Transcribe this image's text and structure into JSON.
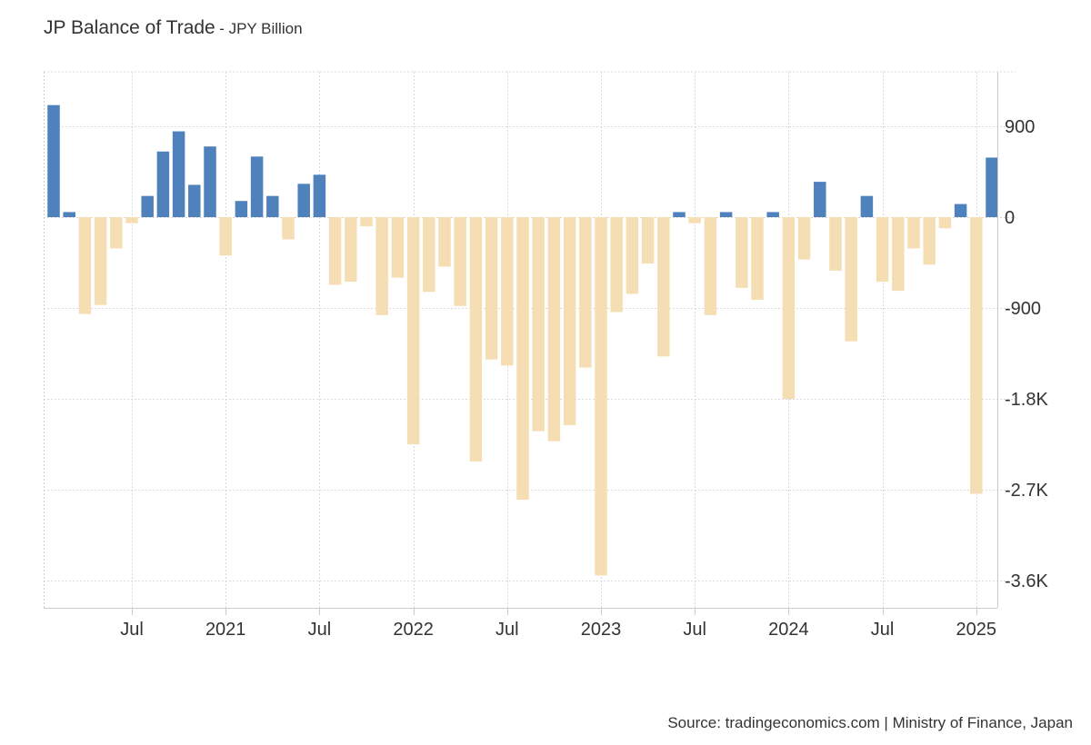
{
  "header": {
    "title": "JP Balance of Trade",
    "subtitle": "- JPY Billion"
  },
  "footer": {
    "source": "Source: tradingeconomics.com | Ministry of Finance, Japan"
  },
  "colors": {
    "positive": "#4f81bd",
    "negative": "#f5deb3",
    "grid": "#d9d9d9",
    "axis": "#cccccc",
    "text": "#333333"
  },
  "chart_data": {
    "type": "bar",
    "title": "JP Balance of Trade",
    "ylabel": "JPY Billion",
    "xlabel": "",
    "ylim": [
      -3870,
      1440
    ],
    "yticks": [
      {
        "value": 900,
        "label": "900"
      },
      {
        "value": 0,
        "label": "0"
      },
      {
        "value": -900,
        "label": "-900"
      },
      {
        "value": -1800,
        "label": "-1.8K"
      },
      {
        "value": -2700,
        "label": "-2.7K"
      },
      {
        "value": -3600,
        "label": "-3.6K"
      }
    ],
    "xticks": [
      {
        "index": 5,
        "label": "Jul"
      },
      {
        "index": 11,
        "label": "2021"
      },
      {
        "index": 17,
        "label": "Jul"
      },
      {
        "index": 23,
        "label": "2022"
      },
      {
        "index": 29,
        "label": "Jul"
      },
      {
        "index": 35,
        "label": "2023"
      },
      {
        "index": 41,
        "label": "Jul"
      },
      {
        "index": 47,
        "label": "2024"
      },
      {
        "index": 53,
        "label": "Jul"
      },
      {
        "index": 59,
        "label": "2025"
      }
    ],
    "categories": [
      "2020-02",
      "2020-03",
      "2020-04",
      "2020-05",
      "2020-06",
      "2020-07",
      "2020-08",
      "2020-09",
      "2020-10",
      "2020-11",
      "2020-12",
      "2021-01",
      "2021-02",
      "2021-03",
      "2021-04",
      "2021-05",
      "2021-06",
      "2021-07",
      "2021-08",
      "2021-09",
      "2021-10",
      "2021-11",
      "2021-12",
      "2022-01",
      "2022-02",
      "2022-03",
      "2022-04",
      "2022-05",
      "2022-06",
      "2022-07",
      "2022-08",
      "2022-09",
      "2022-10",
      "2022-11",
      "2022-12",
      "2023-01",
      "2023-02",
      "2023-03",
      "2023-04",
      "2023-05",
      "2023-06",
      "2023-07",
      "2023-08",
      "2023-09",
      "2023-10",
      "2023-11",
      "2023-12",
      "2024-01",
      "2024-02",
      "2024-03",
      "2024-04",
      "2024-05",
      "2024-06",
      "2024-07",
      "2024-08",
      "2024-09",
      "2024-10",
      "2024-11",
      "2024-12",
      "2025-01",
      "2025-02"
    ],
    "values": [
      1110,
      50,
      -960,
      -870,
      -310,
      -60,
      210,
      650,
      850,
      320,
      700,
      -380,
      160,
      600,
      210,
      -220,
      330,
      420,
      -670,
      -640,
      -90,
      -970,
      -600,
      -2250,
      -740,
      -490,
      -880,
      -2420,
      -1410,
      -1470,
      -2800,
      -2120,
      -2220,
      -2060,
      -1490,
      -3550,
      -940,
      -760,
      -460,
      -1380,
      50,
      -60,
      -970,
      50,
      -700,
      -820,
      50,
      -1800,
      -420,
      350,
      -530,
      -1230,
      210,
      -640,
      -730,
      -310,
      -470,
      -110,
      130,
      -2740,
      590
    ]
  }
}
